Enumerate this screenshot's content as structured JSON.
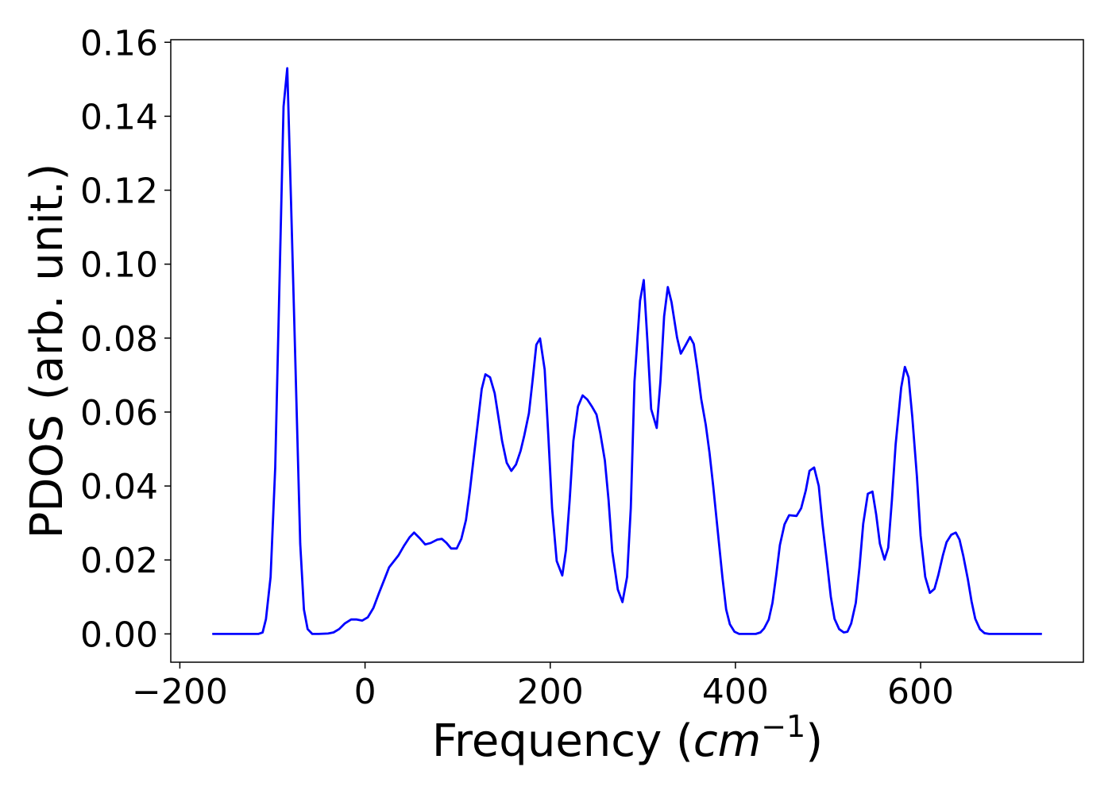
{
  "chart_data": {
    "type": "line",
    "xlabel": [
      "Frequency (",
      "cm",
      "−1",
      ")"
    ],
    "ylabel": "PDOS (arb. unit.)",
    "x": [
      -165,
      -140,
      -120,
      -115,
      -110.6,
      -107,
      -102,
      -97,
      -88,
      -84,
      -80,
      -75.4,
      -70,
      -66,
      -62,
      -57,
      -50,
      -40,
      -34,
      -28,
      -22,
      -15,
      -9,
      -3,
      3,
      9,
      15,
      21,
      26,
      36,
      42,
      48,
      53,
      59,
      65,
      71,
      78,
      83,
      88,
      93,
      99,
      104,
      109,
      113,
      117,
      122,
      126,
      130,
      135,
      140,
      144,
      148,
      153,
      158,
      163,
      168,
      172,
      177,
      181,
      185,
      189,
      194,
      198,
      202,
      207,
      213,
      217,
      221,
      225,
      230,
      235,
      240,
      245,
      250,
      254,
      259,
      263,
      267,
      273,
      278,
      283,
      287,
      291,
      297,
      301,
      305,
      309,
      315,
      319,
      323,
      327,
      331,
      337,
      341,
      346,
      351,
      355,
      359,
      363,
      368,
      372,
      376,
      381,
      386,
      390,
      394,
      399,
      404,
      422,
      427,
      431,
      436,
      440,
      444,
      448,
      453,
      458,
      466,
      471,
      476,
      480,
      485,
      490,
      494,
      499,
      503,
      507,
      512,
      517,
      521,
      525,
      530,
      534,
      538,
      543,
      548,
      552,
      556,
      561,
      565,
      569,
      573,
      579,
      583,
      587,
      591,
      596,
      600,
      605,
      610,
      615,
      619,
      624,
      628,
      633,
      638,
      642,
      646,
      651,
      655,
      659,
      664,
      669,
      674,
      700,
      731
    ],
    "series": [
      {
        "name": "PDOS",
        "color": "#0000ff",
        "values": [
          0,
          0,
          0,
          0,
          0.0004,
          0.004,
          0.0154,
          0.045,
          0.1426,
          0.153,
          0.1176,
          0.075,
          0.0244,
          0.0066,
          0.0013,
          0,
          0,
          0.0001,
          0.0004,
          0.0013,
          0.0028,
          0.0039,
          0.0039,
          0.0036,
          0.0045,
          0.007,
          0.011,
          0.0148,
          0.018,
          0.0212,
          0.0238,
          0.0261,
          0.0274,
          0.0259,
          0.0242,
          0.0246,
          0.0255,
          0.0257,
          0.0246,
          0.0231,
          0.0231,
          0.0257,
          0.0308,
          0.0383,
          0.0469,
          0.0576,
          0.0662,
          0.0702,
          0.0694,
          0.0651,
          0.0587,
          0.0522,
          0.0463,
          0.0441,
          0.0458,
          0.0495,
          0.0537,
          0.0597,
          0.0687,
          0.0782,
          0.0799,
          0.0715,
          0.0533,
          0.034,
          0.0197,
          0.0158,
          0.0227,
          0.0362,
          0.0522,
          0.0615,
          0.0645,
          0.0634,
          0.0615,
          0.0593,
          0.0544,
          0.0469,
          0.0362,
          0.0223,
          0.012,
          0.0086,
          0.0154,
          0.034,
          0.0683,
          0.0901,
          0.0957,
          0.079,
          0.0608,
          0.0557,
          0.0683,
          0.0859,
          0.0938,
          0.0897,
          0.0801,
          0.0758,
          0.078,
          0.0803,
          0.0784,
          0.0715,
          0.0636,
          0.0565,
          0.049,
          0.04,
          0.0276,
          0.0152,
          0.0066,
          0.0026,
          0.0006,
          0,
          0,
          0.0004,
          0.0015,
          0.0039,
          0.0084,
          0.0158,
          0.024,
          0.0296,
          0.0321,
          0.0319,
          0.034,
          0.0388,
          0.0441,
          0.045,
          0.04,
          0.0298,
          0.0191,
          0.0101,
          0.0041,
          0.0013,
          0.0004,
          0.0006,
          0.0028,
          0.0084,
          0.018,
          0.0298,
          0.0379,
          0.0385,
          0.0323,
          0.0244,
          0.0201,
          0.0233,
          0.0362,
          0.0512,
          0.0666,
          0.0722,
          0.0694,
          0.0587,
          0.0426,
          0.0266,
          0.0154,
          0.0111,
          0.0122,
          0.0158,
          0.0212,
          0.0248,
          0.0268,
          0.0274,
          0.0255,
          0.0212,
          0.0148,
          0.0088,
          0.0041,
          0.0013,
          0.0002,
          0,
          0,
          0
        ]
      }
    ],
    "xlim": [
      -209.8,
      775.8
    ],
    "ylim": [
      -0.00765,
      0.1607
    ],
    "xticks": [
      {
        "value": -200,
        "label": "−200"
      },
      0,
      200,
      400,
      600
    ],
    "yticks": [
      {
        "value": 0,
        "label": "0.00"
      },
      {
        "value": 0.02,
        "label": "0.02"
      },
      {
        "value": 0.04,
        "label": "0.04"
      },
      {
        "value": 0.06,
        "label": "0.06"
      },
      {
        "value": 0.08,
        "label": "0.08"
      },
      {
        "value": 0.1,
        "label": "0.10"
      },
      {
        "value": 0.12,
        "label": "0.12"
      },
      {
        "value": 0.14,
        "label": "0.14"
      },
      {
        "value": 0.16,
        "label": "0.16"
      }
    ],
    "grid": false
  }
}
